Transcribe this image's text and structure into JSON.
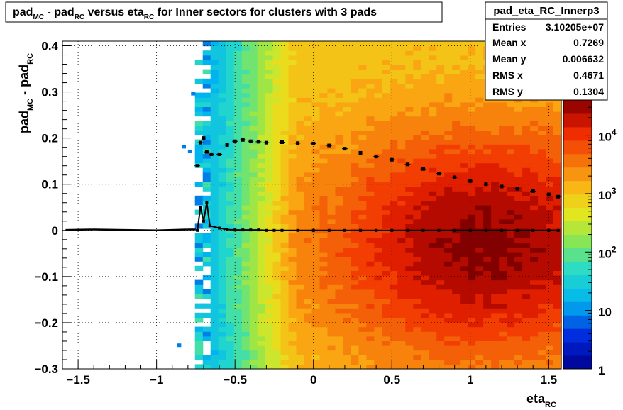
{
  "title": {
    "parts": [
      "pad",
      "MC",
      " - pad",
      "RC",
      " versus eta",
      "RC",
      " for Inner sectors for clusters with 3 pads"
    ]
  },
  "stats": {
    "name": "pad_eta_RC_Innerp3",
    "rows": [
      {
        "label": "Entries",
        "value": "3.10205e+07"
      },
      {
        "label": "Mean x",
        "value": "0.7269"
      },
      {
        "label": "Mean y",
        "value": "0.006632"
      },
      {
        "label": "RMS x",
        "value": "0.4671"
      },
      {
        "label": "RMS y",
        "value": "0.1304"
      }
    ]
  },
  "chart_data": {
    "type": "heatmap",
    "xlabel": {
      "main": "eta",
      "sub": "RC"
    },
    "ylabel": {
      "p1": "pad",
      "s1": "MC",
      "p2": " - pad",
      "s2": "RC"
    },
    "xlim": [
      -1.6,
      1.58
    ],
    "ylim": [
      -0.3,
      0.41
    ],
    "x_ticks": [
      {
        "v": -1.5,
        "label": "−1.5"
      },
      {
        "v": -1,
        "label": "−1"
      },
      {
        "v": -0.5,
        "label": "−0.5"
      },
      {
        "v": 0,
        "label": "0"
      },
      {
        "v": 0.5,
        "label": "0.5"
      },
      {
        "v": 1,
        "label": "1"
      },
      {
        "v": 1.5,
        "label": "1.5"
      }
    ],
    "y_ticks": [
      {
        "v": -0.3,
        "label": "−0.3"
      },
      {
        "v": -0.2,
        "label": "−0.2"
      },
      {
        "v": -0.1,
        "label": "−0.1"
      },
      {
        "v": 0,
        "label": "0"
      },
      {
        "v": 0.1,
        "label": "0.1"
      },
      {
        "v": 0.2,
        "label": "0.2"
      },
      {
        "v": 0.3,
        "label": "0.3"
      },
      {
        "v": 0.4,
        "label": "0.4"
      }
    ],
    "z_scale": "log",
    "z_range": [
      1,
      40000
    ],
    "z_ticks": [
      {
        "v": 1,
        "label": "1"
      },
      {
        "v": 10,
        "label": "10"
      },
      {
        "v": 100,
        "label": "10",
        "exp": "2"
      },
      {
        "v": 1000,
        "label": "10",
        "exp": "3"
      },
      {
        "v": 10000,
        "label": "10",
        "exp": "4"
      }
    ],
    "grid": true,
    "mean_profile": {
      "x": [
        -0.74,
        -0.72,
        -0.7,
        -0.68,
        -0.66,
        -0.6,
        -0.55,
        -0.5,
        -0.45,
        -0.4,
        -0.35,
        -0.3,
        -0.25,
        -0.2,
        -0.1,
        0,
        0.1,
        0.2,
        0.3,
        0.4,
        0.5,
        0.6,
        0.7,
        0.8,
        0.9,
        1.0,
        1.1,
        1.2,
        1.3,
        1.4,
        1.5,
        1.56
      ],
      "y": [
        0.0,
        0.05,
        0.02,
        0.06,
        0.01,
        0.005,
        0.002,
        0.001,
        0.001,
        0.001,
        0.001,
        0.0,
        0.0,
        0.0,
        0.0,
        0.0,
        0.0,
        0.0,
        0.0,
        0.0,
        0.0,
        0.0,
        0.0,
        0.0,
        0.0,
        0.0,
        0.0,
        0.0,
        0.0,
        0.0,
        0.0,
        0.0
      ]
    },
    "rms_profile": {
      "x": [
        -0.74,
        -0.72,
        -0.7,
        -0.68,
        -0.65,
        -0.6,
        -0.55,
        -0.5,
        -0.45,
        -0.4,
        -0.35,
        -0.3,
        -0.2,
        -0.1,
        0,
        0.1,
        0.2,
        0.3,
        0.4,
        0.5,
        0.6,
        0.7,
        0.8,
        0.9,
        1.0,
        1.1,
        1.2,
        1.3,
        1.4,
        1.5,
        1.56
      ],
      "y": [
        0.14,
        0.19,
        0.2,
        0.17,
        0.165,
        0.165,
        0.185,
        0.193,
        0.196,
        0.193,
        0.192,
        0.19,
        0.191,
        0.189,
        0.188,
        0.184,
        0.177,
        0.168,
        0.16,
        0.153,
        0.143,
        0.133,
        0.123,
        0.115,
        0.107,
        0.1,
        0.095,
        0.09,
        0.085,
        0.078,
        0.073
      ]
    },
    "low_eta_band": {
      "x": [
        -1.58,
        -1.4,
        -1.2,
        -1.0,
        -0.8,
        -0.75
      ],
      "y": [
        0.001,
        0.002,
        0.001,
        0.0,
        0.002,
        0.002
      ]
    }
  }
}
